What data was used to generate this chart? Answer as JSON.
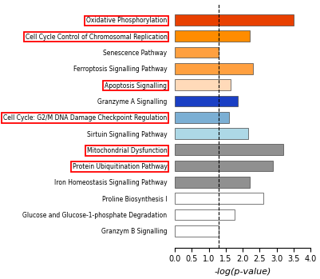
{
  "categories": [
    "Granzym B Signalling",
    "Glucose and Glucose-1-phosphate Degradation",
    "Proline Biosynthesis I",
    "Iron Homeostasis Signalling Pathway",
    "Protein Ubiquitination Pathway",
    "Mitochondrial Dysfunction",
    "Sirtuin Signalling Pathway",
    "Cell Cycle: G2/M DNA Damage Checkpoint Regulation",
    "Granzyme A Signalling",
    "Apoptosis Signalling",
    "Ferroptosis Signalling Pathway",
    "Senescence Pathway",
    "Cell Cycle Control of Chromosomal Replication",
    "Oxidative Phosphorylation"
  ],
  "values": [
    1.3,
    1.75,
    2.6,
    2.2,
    2.9,
    3.2,
    2.15,
    1.6,
    1.85,
    1.65,
    2.3,
    1.3,
    2.2,
    3.5
  ],
  "colors": [
    "#ffffff",
    "#ffffff",
    "#ffffff",
    "#909090",
    "#909090",
    "#909090",
    "#add8e6",
    "#7bafd4",
    "#1a3fc4",
    "#ffdab9",
    "#ffa040",
    "#ffa040",
    "#ff8c00",
    "#e84000"
  ],
  "red_box": [
    false,
    false,
    false,
    false,
    true,
    true,
    false,
    true,
    false,
    true,
    false,
    false,
    true,
    true
  ],
  "threshold": 1.3,
  "xlabel": "-log(p-value)",
  "xlim": [
    0,
    4.0
  ],
  "xticks": [
    0.0,
    0.5,
    1.0,
    1.5,
    2.0,
    2.5,
    3.0,
    3.5,
    4.0
  ],
  "bar_height": 0.68,
  "label_fontsize": 5.5,
  "xlabel_fontsize": 8,
  "xtick_fontsize": 7
}
